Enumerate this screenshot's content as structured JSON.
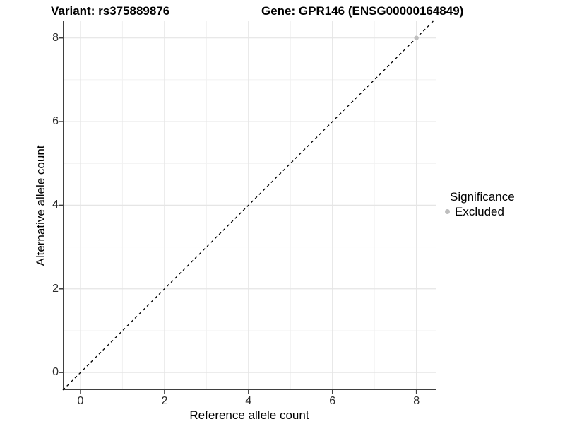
{
  "titles": {
    "variant": "Variant: rs375889876",
    "gene": "Gene: GPR146 (ENSG00000164849)"
  },
  "chart_data": {
    "type": "scatter",
    "title": "Variant: rs375889876  /  Gene: GPR146 (ENSG00000164849)",
    "xlabel": "Reference allele count",
    "ylabel": "Alternative allele count",
    "xlim": [
      -0.42,
      8.46
    ],
    "ylim": [
      -0.42,
      8.4
    ],
    "x_ticks": [
      0,
      2,
      4,
      6,
      8
    ],
    "y_ticks": [
      0,
      2,
      4,
      6,
      8
    ],
    "x_minor_ticks": [
      1,
      3,
      5,
      7
    ],
    "y_minor_ticks": [
      1,
      3,
      5,
      7
    ],
    "grid": "major and minor gridlines, white panel background",
    "reference_line": {
      "kind": "identity y=x",
      "style": "dashed",
      "color": "#000000",
      "span": [
        -0.42,
        8.4
      ]
    },
    "series": [
      {
        "name": "Excluded",
        "color": "#bebebe",
        "points": [
          {
            "x": 8,
            "y": 8
          }
        ]
      }
    ],
    "legend": {
      "title": "Significance",
      "position": "right",
      "entries": [
        {
          "label": "Excluded",
          "color": "#bebebe"
        }
      ]
    }
  },
  "legend": {
    "title": "Significance",
    "items": [
      {
        "label": "Excluded",
        "color": "#bebebe"
      }
    ]
  },
  "colors": {
    "grid_major": "#e5e5e5",
    "grid_minor": "#f1f1f1",
    "axis_line": "#3f3f3f",
    "tick_mark": "#3f3f3f",
    "dashed_line": "#000000",
    "point": "#bebebe"
  }
}
